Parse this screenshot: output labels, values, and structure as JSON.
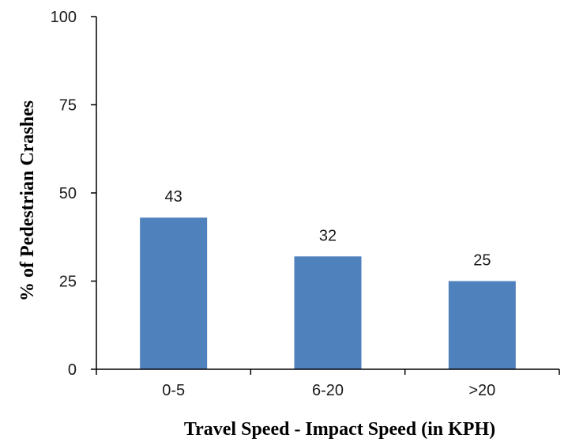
{
  "chart_data": {
    "type": "bar",
    "categories": [
      "0-5",
      "6-20",
      ">20"
    ],
    "values": [
      43,
      32,
      25
    ],
    "data_labels": [
      "43",
      "32",
      "25"
    ],
    "xlabel": "Travel Speed - Impact Speed (in KPH)",
    "ylabel": "% of Pedestrian Crashes",
    "ylim": [
      0,
      100
    ],
    "yticks": [
      "0",
      "25",
      "50",
      "75",
      "100"
    ],
    "grid": false,
    "legend": "none",
    "bar_color": "#4f81bd",
    "axis_color": "#000000"
  }
}
